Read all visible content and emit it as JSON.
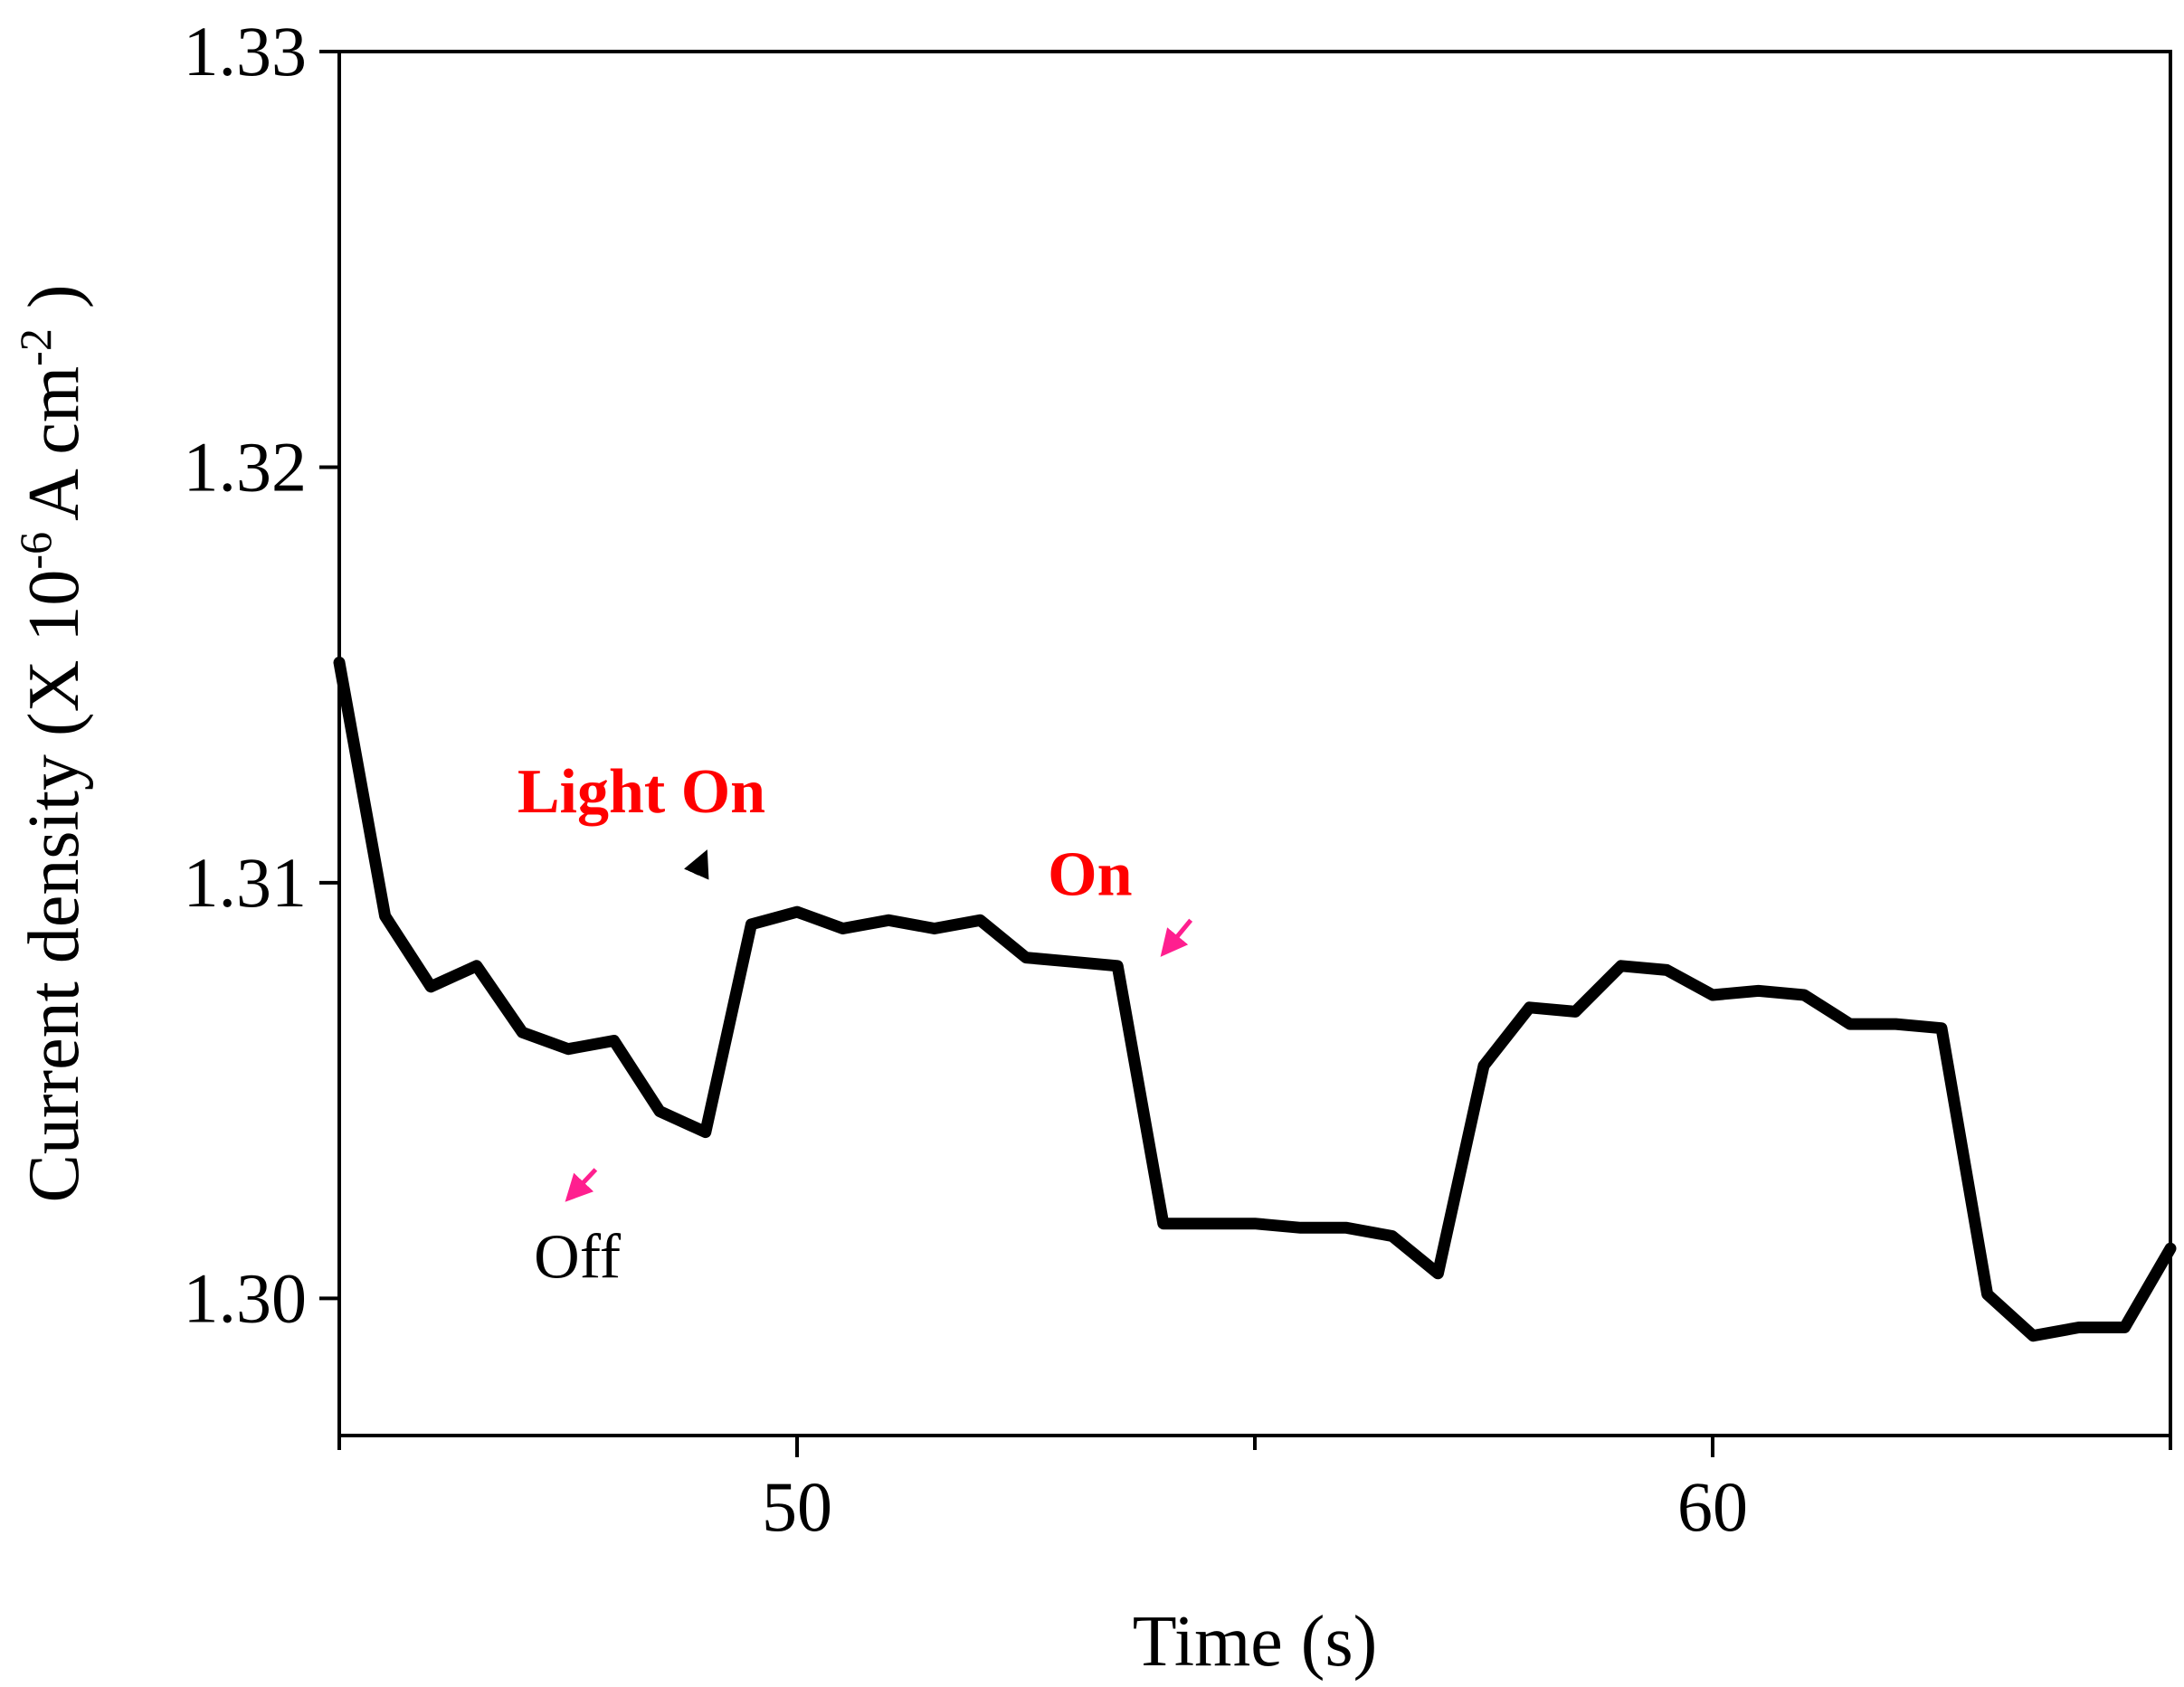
{
  "chart_data": {
    "type": "line",
    "title": "",
    "xlabel": "Time (s)",
    "ylabel": {
      "prefix": "Current density (X 10",
      "exp1": "-6",
      "middle": "A cm",
      "exp2": "-2",
      "suffix": ")"
    },
    "xlim": [
      45,
      65
    ],
    "ylim": [
      1.2967,
      1.33
    ],
    "xticks": [
      50,
      60
    ],
    "xtick_labels": [
      "50",
      "60"
    ],
    "xminor_ticks": [
      45,
      55,
      65
    ],
    "yticks": [
      1.3,
      1.31,
      1.32,
      1.33
    ],
    "ytick_labels": [
      "1.30",
      "1.31",
      "1.32",
      "1.33"
    ],
    "grid": false,
    "legend": "none",
    "line_color": "#000000",
    "series": [
      {
        "x": [
          45.0,
          45.5,
          46.0,
          46.5,
          47.0,
          47.5,
          48.0,
          48.5,
          49.0,
          49.5,
          50.0,
          50.5,
          51.0,
          51.5,
          52.0,
          52.5,
          53.0,
          53.5,
          54.0,
          54.5,
          55.0,
          55.5,
          56.0,
          56.5,
          57.0,
          57.5,
          58.0,
          58.5,
          59.0,
          59.5,
          60.0,
          60.5,
          61.0,
          61.5,
          62.0,
          62.5,
          63.0,
          63.5,
          64.0,
          64.5,
          65.0
        ],
        "y": [
          1.3153,
          1.3092,
          1.3075,
          1.308,
          1.3064,
          1.306,
          1.3062,
          1.3045,
          1.304,
          1.309,
          1.3093,
          1.3089,
          1.3091,
          1.3089,
          1.3091,
          1.3082,
          1.3081,
          1.308,
          1.3018,
          1.3018,
          1.3018,
          1.3017,
          1.3017,
          1.3015,
          1.3006,
          1.3056,
          1.307,
          1.3069,
          1.308,
          1.3079,
          1.3073,
          1.3074,
          1.3073,
          1.3066,
          1.3066,
          1.3065,
          1.3001,
          1.2991,
          1.2993,
          1.2993,
          1.3012
        ]
      }
    ],
    "annotations": [
      {
        "text": "Light On",
        "color": "#ff0000",
        "bold": true,
        "x": 48.3,
        "y": 1.3117
      },
      {
        "text": "On",
        "color": "#ff0000",
        "bold": true,
        "x": 53.2,
        "y": 1.3097
      },
      {
        "text": "Off",
        "color": "#000000",
        "bold": false,
        "x": 47.6,
        "y": 1.3005
      }
    ],
    "arrows": [
      {
        "color": "#000000",
        "from": [
          48.9,
          1.3102
        ],
        "to": [
          49.0,
          1.3107
        ]
      },
      {
        "color": "#ff1f8f",
        "from": [
          54.3,
          1.3091
        ],
        "to": [
          54.0,
          1.3083
        ]
      },
      {
        "color": "#ff1f8f",
        "from": [
          47.8,
          1.3031
        ],
        "to": [
          47.5,
          1.3024
        ]
      }
    ]
  }
}
